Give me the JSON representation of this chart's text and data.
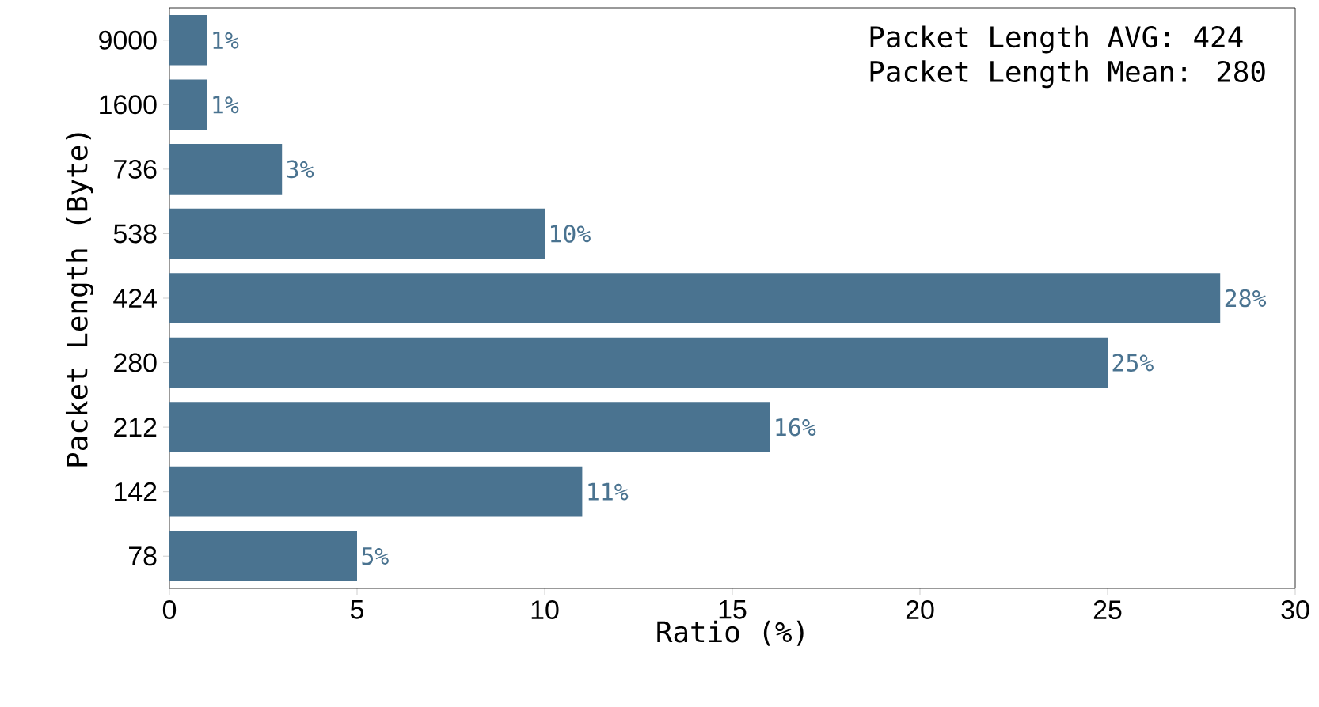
{
  "chart_data": {
    "type": "bar",
    "orientation": "horizontal",
    "xlabel": "Ratio (%)",
    "ylabel": "Packet Length (Byte)",
    "categories": [
      "9000",
      "1600",
      "736",
      "538",
      "424",
      "280",
      "212",
      "142",
      "78"
    ],
    "values": [
      1,
      1,
      3,
      10,
      28,
      25,
      16,
      11,
      5
    ],
    "value_labels": [
      "1%",
      "1%",
      "3%",
      "10%",
      "28%",
      "25%",
      "16%",
      "11%",
      "5%"
    ],
    "color": "#4a7390",
    "xlim": [
      0,
      30
    ],
    "xticks": [
      0,
      5,
      10,
      15,
      20,
      25,
      30
    ],
    "annotations": [
      "Packet Length AVG: 424",
      "Packet Length Mean: 280"
    ]
  }
}
